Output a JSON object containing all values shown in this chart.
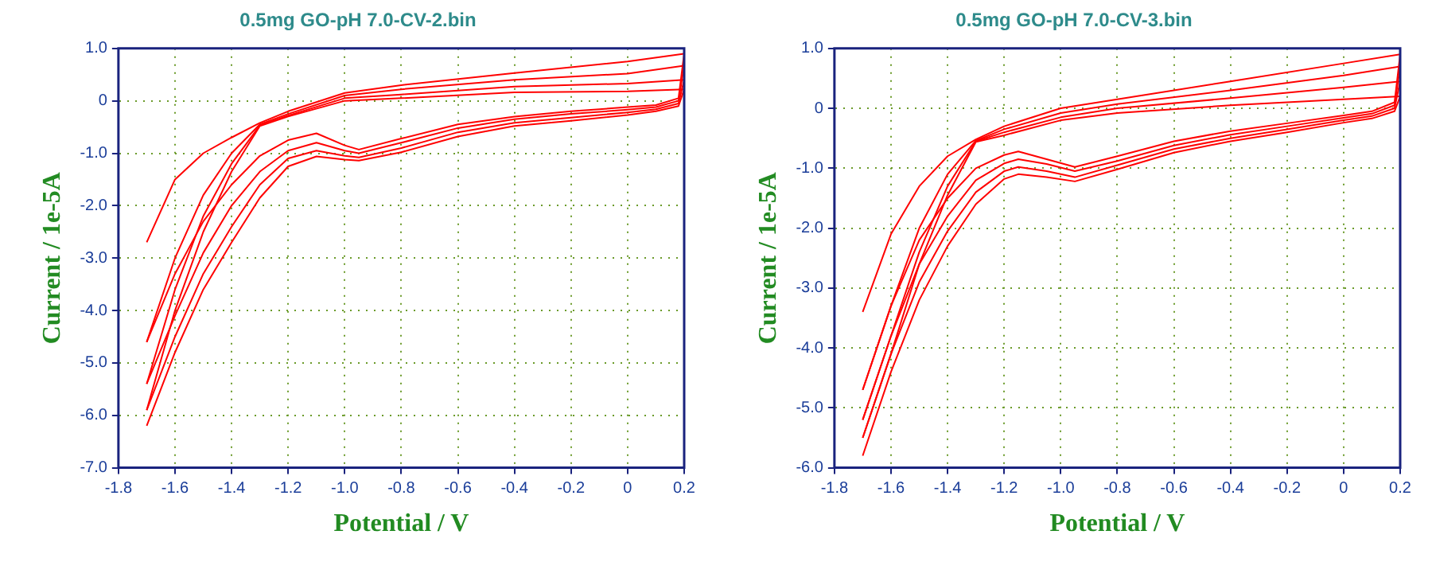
{
  "chart_data": [
    {
      "type": "line",
      "title": "0.5mg GO-pH 7.0-CV-2.bin",
      "xlabel": "Potential / V",
      "ylabel": "Current / 1e-5A",
      "marker": "none",
      "grid": true,
      "xlim": [
        -1.8,
        0.2
      ],
      "xticks": [
        -1.8,
        -1.6,
        -1.4,
        -1.2,
        {
          "value": -1,
          "label": "-1.0"
        },
        -0.8,
        -0.6,
        -0.4,
        -0.2,
        0,
        0.2
      ],
      "ylim": [
        -7,
        1
      ],
      "yticks": [
        {
          "value": 1,
          "label": "1.0"
        },
        0,
        {
          "value": -1,
          "label": "-1.0"
        },
        {
          "value": -2,
          "label": "-2.0"
        },
        {
          "value": -3,
          "label": "-3.0"
        },
        {
          "value": -4,
          "label": "-4.0"
        },
        {
          "value": -5,
          "label": "-5.0"
        },
        {
          "value": -6,
          "label": "-6.0"
        },
        {
          "value": -7,
          "label": "-7.0"
        }
      ],
      "series": [
        {
          "color": "#ff0000",
          "x": [
            -1.7,
            -1.6,
            -1.5,
            -1.4,
            -1.3,
            -1.2,
            -1.1,
            -1.0,
            -0.95,
            -0.8,
            -0.6,
            -0.4,
            -0.2,
            0,
            0.1,
            0.18,
            0.2,
            0,
            -0.4,
            -0.8,
            -1.0,
            -1.2,
            -1.3,
            -1.4,
            -1.5,
            -1.6,
            -1.7
          ],
          "values": [
            -4.6,
            -3.3,
            -2.3,
            -1.6,
            -1.05,
            -0.75,
            -0.62,
            -0.85,
            -0.93,
            -0.72,
            -0.45,
            -0.3,
            -0.2,
            -0.12,
            -0.08,
            0.05,
            0.9,
            0.75,
            0.53,
            0.3,
            0.15,
            -0.2,
            -0.42,
            -0.7,
            -1.0,
            -1.5,
            -2.7
          ]
        },
        {
          "color": "#ff0000",
          "x": [
            -1.7,
            -1.6,
            -1.5,
            -1.4,
            -1.3,
            -1.2,
            -1.1,
            -1.0,
            -0.95,
            -0.8,
            -0.6,
            -0.4,
            -0.2,
            0,
            0.1,
            0.18,
            0.2,
            0,
            -0.4,
            -0.8,
            -1.0,
            -1.2,
            -1.3,
            -1.4,
            -1.5,
            -1.6,
            -1.7
          ],
          "values": [
            -5.4,
            -4.1,
            -2.9,
            -2.0,
            -1.35,
            -0.95,
            -0.8,
            -0.95,
            -1.0,
            -0.8,
            -0.52,
            -0.35,
            -0.25,
            -0.17,
            -0.12,
            0,
            0.67,
            0.52,
            0.4,
            0.22,
            0.1,
            -0.25,
            -0.45,
            -1.0,
            -1.8,
            -3.0,
            -4.6
          ]
        },
        {
          "color": "#ff0000",
          "x": [
            -1.7,
            -1.6,
            -1.5,
            -1.4,
            -1.3,
            -1.2,
            -1.1,
            -1.0,
            -0.95,
            -0.8,
            -0.6,
            -0.4,
            -0.2,
            0,
            0.1,
            0.18,
            0.2,
            0,
            -0.4,
            -0.8,
            -1.0,
            -1.2,
            -1.3,
            -1.4,
            -1.5,
            -1.6,
            -1.7
          ],
          "values": [
            -5.9,
            -4.5,
            -3.3,
            -2.4,
            -1.6,
            -1.1,
            -0.95,
            -1.05,
            -1.08,
            -0.9,
            -0.6,
            -0.42,
            -0.32,
            -0.22,
            -0.16,
            -0.05,
            0.4,
            0.33,
            0.27,
            0.12,
            0.05,
            -0.28,
            -0.47,
            -1.2,
            -2.2,
            -3.6,
            -5.4
          ]
        },
        {
          "color": "#ff0000",
          "x": [
            -1.7,
            -1.6,
            -1.5,
            -1.4,
            -1.3,
            -1.2,
            -1.1,
            -1.0,
            -0.95,
            -0.8,
            -0.6,
            -0.4,
            -0.2,
            0,
            0.1,
            0.18,
            0.2,
            0,
            -0.4,
            -0.8,
            -1.0,
            -1.2,
            -1.3,
            -1.4,
            -1.5,
            -1.6,
            -1.7
          ],
          "values": [
            -6.2,
            -4.8,
            -3.6,
            -2.7,
            -1.85,
            -1.25,
            -1.06,
            -1.12,
            -1.14,
            -0.98,
            -0.68,
            -0.48,
            -0.38,
            -0.27,
            -0.2,
            -0.1,
            0.22,
            0.18,
            0.16,
            0.05,
            0,
            -0.3,
            -0.48,
            -1.35,
            -2.5,
            -4.0,
            -5.9
          ]
        }
      ]
    },
    {
      "type": "line",
      "title": "0.5mg GO-pH 7.0-CV-3.bin",
      "xlabel": "Potential / V",
      "ylabel": "Current / 1e-5A",
      "marker": "none",
      "grid": true,
      "xlim": [
        -1.8,
        0.2
      ],
      "xticks": [
        -1.8,
        -1.6,
        -1.4,
        -1.2,
        {
          "value": -1,
          "label": "-1.0"
        },
        -0.8,
        -0.6,
        -0.4,
        -0.2,
        0,
        0.2
      ],
      "ylim": [
        -6,
        1
      ],
      "yticks": [
        {
          "value": 1,
          "label": "1.0"
        },
        0,
        {
          "value": -1,
          "label": "-1.0"
        },
        {
          "value": -2,
          "label": "-2.0"
        },
        {
          "value": -3,
          "label": "-3.0"
        },
        {
          "value": -4,
          "label": "-4.0"
        },
        {
          "value": -5,
          "label": "-5.0"
        },
        {
          "value": -6,
          "label": "-6.0"
        }
      ],
      "series": [
        {
          "color": "#ff0000",
          "x": [
            -1.7,
            -1.6,
            -1.5,
            -1.4,
            -1.3,
            -1.2,
            -1.15,
            -1.05,
            -0.95,
            -0.8,
            -0.6,
            -0.4,
            -0.2,
            0,
            0.1,
            0.18,
            0.2,
            0,
            -0.4,
            -0.8,
            -1.0,
            -1.2,
            -1.3,
            -1.4,
            -1.5,
            -1.6,
            -1.7
          ],
          "values": [
            -4.7,
            -3.3,
            -2.2,
            -1.5,
            -1.0,
            -0.78,
            -0.72,
            -0.85,
            -0.98,
            -0.8,
            -0.55,
            -0.38,
            -0.25,
            -0.12,
            -0.05,
            0.1,
            0.9,
            0.75,
            0.45,
            0.15,
            0,
            -0.3,
            -0.52,
            -0.8,
            -1.3,
            -2.1,
            -3.4
          ]
        },
        {
          "color": "#ff0000",
          "x": [
            -1.7,
            -1.6,
            -1.5,
            -1.4,
            -1.3,
            -1.2,
            -1.15,
            -1.05,
            -0.95,
            -0.8,
            -0.6,
            -0.4,
            -0.2,
            0,
            0.1,
            0.18,
            0.2,
            0,
            -0.4,
            -0.8,
            -1.0,
            -1.2,
            -1.3,
            -1.4,
            -1.5,
            -1.6,
            -1.7
          ],
          "values": [
            -5.2,
            -3.8,
            -2.6,
            -1.8,
            -1.2,
            -0.92,
            -0.85,
            -0.93,
            -1.05,
            -0.88,
            -0.62,
            -0.44,
            -0.3,
            -0.16,
            -0.09,
            0.05,
            0.7,
            0.55,
            0.3,
            0.07,
            -0.08,
            -0.35,
            -0.54,
            -1.1,
            -2.0,
            -3.3,
            -4.7
          ]
        },
        {
          "color": "#ff0000",
          "x": [
            -1.7,
            -1.6,
            -1.5,
            -1.4,
            -1.3,
            -1.2,
            -1.15,
            -1.05,
            -0.95,
            -0.8,
            -0.6,
            -0.4,
            -0.2,
            0,
            0.1,
            0.18,
            0.2,
            0,
            -0.4,
            -0.8,
            -1.0,
            -1.2,
            -1.3,
            -1.4,
            -1.5,
            -1.6,
            -1.7
          ],
          "values": [
            -5.5,
            -4.1,
            -2.9,
            -2.05,
            -1.4,
            -1.05,
            -0.98,
            -1.05,
            -1.15,
            -0.95,
            -0.68,
            -0.5,
            -0.35,
            -0.2,
            -0.13,
            0,
            0.45,
            0.35,
            0.17,
            0,
            -0.15,
            -0.4,
            -0.55,
            -1.3,
            -2.4,
            -3.8,
            -5.2
          ]
        },
        {
          "color": "#ff0000",
          "x": [
            -1.7,
            -1.6,
            -1.5,
            -1.4,
            -1.3,
            -1.2,
            -1.15,
            -1.05,
            -0.95,
            -0.8,
            -0.6,
            -0.4,
            -0.2,
            0,
            0.1,
            0.18,
            0.2,
            0,
            -0.4,
            -0.8,
            -1.0,
            -1.2,
            -1.3,
            -1.4,
            -1.5,
            -1.6,
            -1.7
          ],
          "values": [
            -5.8,
            -4.4,
            -3.2,
            -2.3,
            -1.6,
            -1.18,
            -1.1,
            -1.15,
            -1.22,
            -1.02,
            -0.74,
            -0.55,
            -0.4,
            -0.24,
            -0.17,
            -0.05,
            0.2,
            0.15,
            0.05,
            -0.08,
            -0.2,
            -0.45,
            -0.56,
            -1.45,
            -2.6,
            -4.1,
            -5.5
          ]
        }
      ]
    }
  ]
}
